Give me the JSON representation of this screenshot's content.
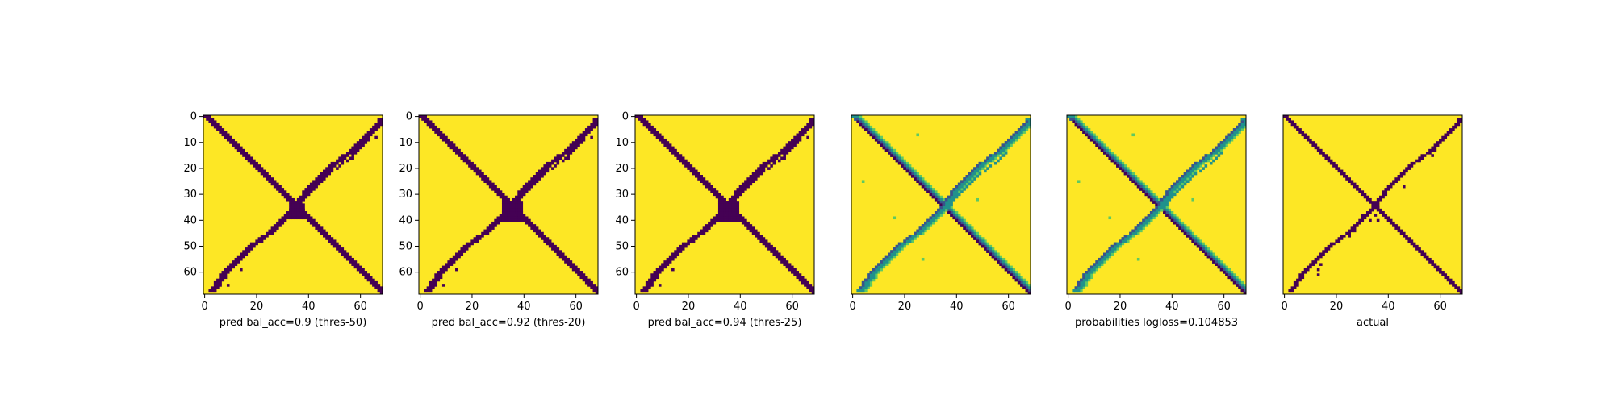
{
  "chart_data": [
    {
      "type": "heatmap",
      "title": "",
      "xlabel": "pred bal_acc=0.9 (thres-50)",
      "ylabel": "",
      "xlim": [
        0,
        69
      ],
      "ylim": [
        69,
        0
      ],
      "xticks": [
        "0",
        "20",
        "40",
        "60"
      ],
      "yticks": [
        "0",
        "10",
        "20",
        "30",
        "40",
        "50",
        "60"
      ],
      "colormap": "viridis",
      "grid": false,
      "content": "binary contact map: thick main diagonal band, anti-diagonal band, dense blob near (37,37)"
    },
    {
      "type": "heatmap",
      "title": "",
      "xlabel": "pred bal_acc=0.92 (thres-20)",
      "ylabel": "",
      "xlim": [
        0,
        69
      ],
      "ylim": [
        69,
        0
      ],
      "xticks": [
        "0",
        "20",
        "40",
        "60"
      ],
      "yticks": [
        "0",
        "10",
        "20",
        "30",
        "40",
        "50",
        "60"
      ],
      "colormap": "viridis",
      "grid": false,
      "content": "binary contact map: diagonal and anti-diagonal bands, larger central blob"
    },
    {
      "type": "heatmap",
      "title": "",
      "xlabel": "pred bal_acc=0.94 (thres-25)",
      "ylabel": "",
      "xlim": [
        0,
        69
      ],
      "ylim": [
        69,
        0
      ],
      "xticks": [
        "0",
        "20",
        "40",
        "60"
      ],
      "yticks": [
        "0",
        "10",
        "20",
        "30",
        "40",
        "50",
        "60"
      ],
      "colormap": "viridis",
      "grid": false,
      "content": "binary contact map: diagonal and anti-diagonal bands, central blob"
    },
    {
      "type": "heatmap",
      "title": "",
      "xlabel": "",
      "ylabel": "",
      "xlim": [
        0,
        69
      ],
      "ylim": [
        69,
        0
      ],
      "xticks": [
        "0",
        "20",
        "40",
        "60"
      ],
      "yticks": [],
      "colormap": "viridis",
      "grid": false,
      "content": "continuous probability map with diagonal and anti-diagonal bands"
    },
    {
      "type": "heatmap",
      "title": "",
      "xlabel": "probabilities logloss=0.104853",
      "ylabel": "",
      "xlim": [
        0,
        69
      ],
      "ylim": [
        69,
        0
      ],
      "xticks": [
        "0",
        "20",
        "40",
        "60"
      ],
      "yticks": [],
      "colormap": "viridis",
      "grid": false,
      "content": "continuous probability map with diagonal and anti-diagonal bands"
    },
    {
      "type": "heatmap",
      "title": "",
      "xlabel": "actual",
      "ylabel": "",
      "xlim": [
        0,
        69
      ],
      "ylim": [
        69,
        0
      ],
      "xticks": [
        "0",
        "20",
        "40",
        "60"
      ],
      "yticks": [],
      "colormap": "viridis",
      "grid": false,
      "content": "ground-truth binary contact map: diagonal and anti-diagonal lines with sparse central contacts"
    }
  ],
  "colors": {
    "high": "#fde725",
    "low": "#440154",
    "mid_teal": "#21918c",
    "mid_green": "#5ec962",
    "mid_blue": "#3b528b"
  }
}
